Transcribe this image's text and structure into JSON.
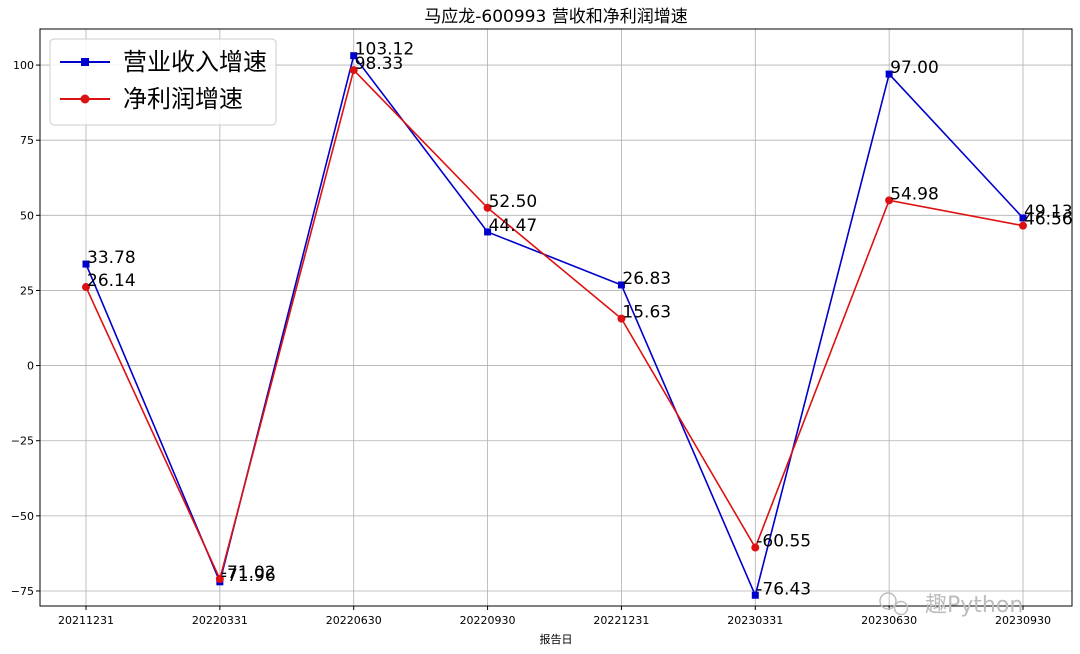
{
  "chart_data": {
    "type": "line",
    "title": "马应龙-600993 营收和净利润增速",
    "xlabel": "报告日",
    "ylabel": "",
    "categories": [
      "20211231",
      "20220331",
      "20220630",
      "20220930",
      "20221231",
      "20230331",
      "20230630",
      "20230930"
    ],
    "ylim": [
      -80,
      112
    ],
    "yticks": [
      -75,
      -50,
      -25,
      0,
      25,
      50,
      75,
      100
    ],
    "grid": true,
    "legend_position": "top-left",
    "series": [
      {
        "name": "营业收入增速",
        "color": "#0000cc",
        "marker": "square",
        "values": [
          33.78,
          -71.96,
          103.12,
          44.47,
          26.83,
          -76.43,
          97.0,
          49.13
        ]
      },
      {
        "name": "净利润增速",
        "color": "#dd1111",
        "marker": "circle",
        "values": [
          26.14,
          -71.02,
          98.33,
          52.5,
          15.63,
          -60.55,
          54.98,
          46.56
        ]
      }
    ]
  },
  "watermark": "趣Python"
}
